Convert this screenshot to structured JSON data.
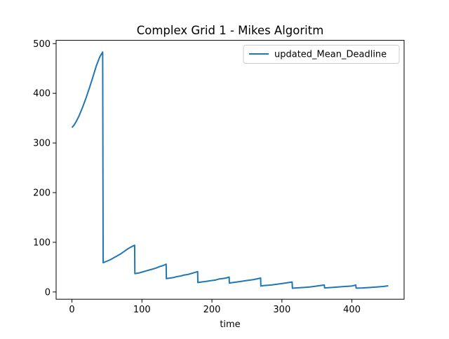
{
  "chart_data": {
    "type": "line",
    "title": "Complex Grid 1 - Mikes Algoritm",
    "xlabel": "time",
    "ylabel": "",
    "xlim": [
      -22.6,
      474.6
    ],
    "ylim": [
      -14.6,
      506.6
    ],
    "xticks": [
      0,
      100,
      200,
      300,
      400
    ],
    "yticks": [
      0,
      100,
      200,
      300,
      400,
      500
    ],
    "grid": false,
    "legend": {
      "placement": "top-right",
      "entries": [
        "updated_Mean_Deadline"
      ]
    },
    "colors": {
      "series": "#1f77b4",
      "axes": "#000000",
      "background": "#ffffff"
    },
    "series": [
      {
        "name": "updated_Mean_Deadline",
        "x": [
          0,
          3,
          6,
          10,
          15,
          20,
          25,
          30,
          35,
          40,
          43.9,
          44.6,
          50,
          55,
          60,
          65,
          70,
          75,
          80,
          85,
          89.6,
          89.9,
          95,
          100,
          105,
          110,
          115,
          120,
          125,
          130,
          134.6,
          134.9,
          140,
          145,
          150,
          155,
          160,
          165,
          170,
          175,
          179.6,
          179.9,
          185,
          190,
          195,
          200,
          205,
          210,
          215,
          220,
          224.6,
          224.9,
          230,
          240,
          250,
          260,
          269.6,
          269.9,
          275,
          285,
          295,
          305,
          314.6,
          315,
          320,
          330,
          340,
          350,
          360.6,
          361,
          370,
          380,
          390,
          400,
          405.6,
          406,
          415,
          425,
          435,
          445,
          452
        ],
        "y": [
          331,
          336,
          343,
          354,
          371,
          390,
          411,
          433,
          456,
          474,
          483,
          59,
          62,
          65,
          69,
          73,
          77,
          82,
          87,
          91,
          94,
          37,
          38,
          40,
          42,
          44,
          46,
          48,
          51,
          53,
          56,
          27,
          28,
          29,
          31,
          32,
          34,
          35,
          37,
          39,
          41,
          19,
          20,
          21,
          22,
          23,
          24,
          26,
          27,
          28,
          30,
          18,
          19,
          21,
          23,
          25,
          28,
          12,
          13,
          14,
          16,
          18,
          20,
          7.5,
          8,
          9,
          10,
          12,
          14,
          8,
          9,
          10,
          11,
          12,
          14,
          7.7,
          8,
          9,
          10,
          11,
          12.5
        ]
      }
    ]
  }
}
